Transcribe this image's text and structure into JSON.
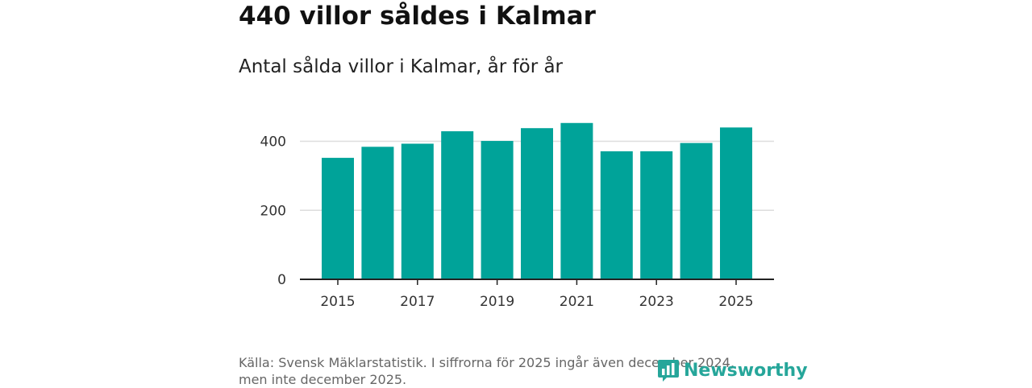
{
  "header": {
    "title": "440 villor såldes i Kalmar",
    "subtitle": "Antal sålda villor i Kalmar, år för år"
  },
  "footer": {
    "source_line1": "Källa: Svensk Mäklarstatistik. I siffrorna för 2025 ingår även december 2024,",
    "source_line2": "men inte december 2025.",
    "logo_text": "Newsworthy",
    "logo_icon": "newsworthy-chart-bubble-icon"
  },
  "colors": {
    "bar": "#00a399",
    "grid": "#dddddd",
    "axis": "#222222",
    "brand": "#26a69a"
  },
  "chart_data": {
    "type": "bar",
    "categories": [
      "2015",
      "2016",
      "2017",
      "2018",
      "2019",
      "2020",
      "2021",
      "2022",
      "2023",
      "2024",
      "2025"
    ],
    "values": [
      352,
      384,
      393,
      429,
      401,
      438,
      453,
      371,
      371,
      395,
      440
    ],
    "x_tick_labels": [
      "2015",
      "2017",
      "2019",
      "2021",
      "2023",
      "2025"
    ],
    "y_ticks": [
      0,
      200,
      400
    ],
    "ylim": [
      0,
      500
    ],
    "grid": true
  }
}
